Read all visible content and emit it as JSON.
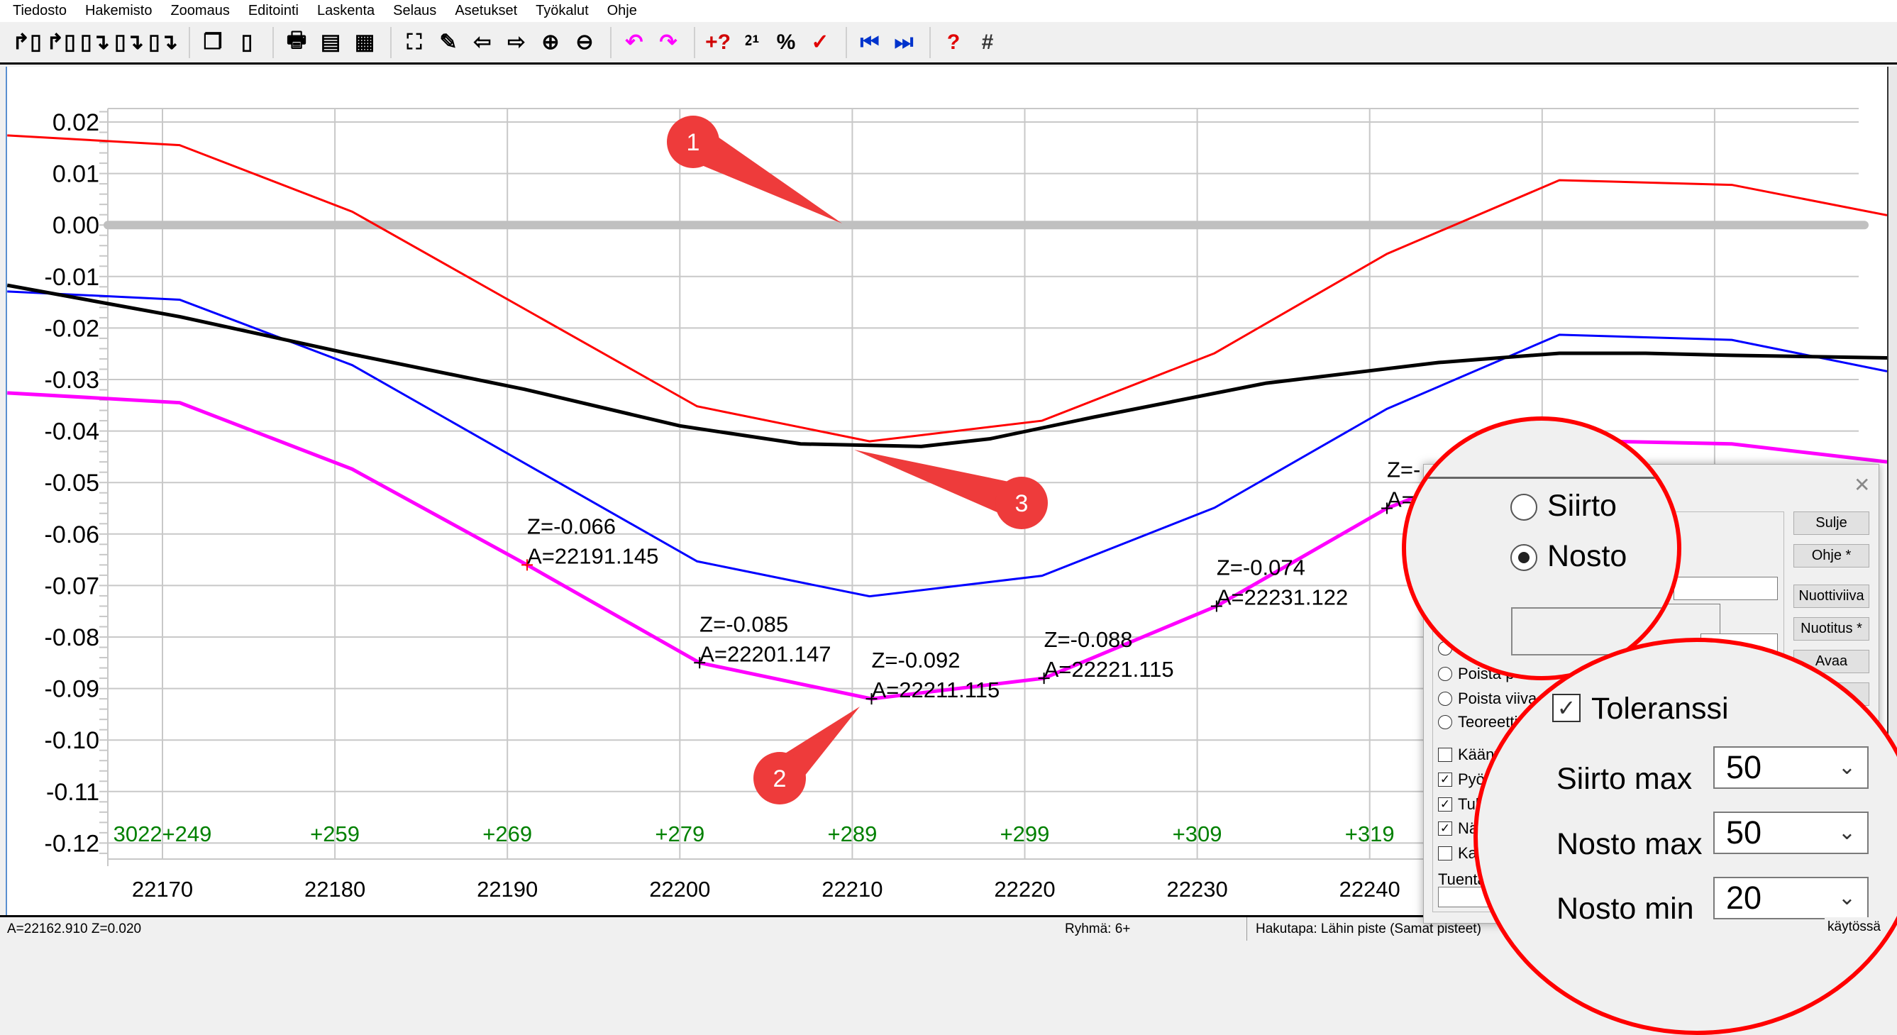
{
  "menu": [
    "Tiedosto",
    "Hakemisto",
    "Zoomaus",
    "Editointi",
    "Laskenta",
    "Selaus",
    "Asetukset",
    "Työkalut",
    "Ohje"
  ],
  "toolbar": [
    {
      "name": "open-file-icon",
      "glyph": "↱▯",
      "color": "#000"
    },
    {
      "name": "open-file-2-icon",
      "glyph": "↱▯",
      "color": "#000"
    },
    {
      "name": "save-file-icon",
      "glyph": "▯↴",
      "color": "#000"
    },
    {
      "name": "save-as-icon",
      "glyph": "▯↴",
      "color": "#000"
    },
    {
      "name": "export-file-icon",
      "glyph": "▯↴",
      "color": "#000"
    },
    {
      "sep": true
    },
    {
      "name": "copy-icon",
      "glyph": "❐",
      "color": "#000"
    },
    {
      "name": "new-page-icon",
      "glyph": "▯",
      "color": "#000"
    },
    {
      "sep": true
    },
    {
      "name": "print-icon",
      "glyph": "🖶",
      "color": "#000"
    },
    {
      "name": "scale-150-icon",
      "glyph": "▤",
      "color": "#000"
    },
    {
      "name": "layout-icon",
      "glyph": "▦",
      "color": "#000"
    },
    {
      "sep": true
    },
    {
      "name": "zoom-all-icon",
      "glyph": "⛶",
      "color": "#000"
    },
    {
      "name": "pan-icon",
      "glyph": "✎",
      "color": "#000"
    },
    {
      "name": "arrow-left-icon",
      "glyph": "⇦",
      "color": "#000"
    },
    {
      "name": "arrow-right-icon",
      "glyph": "⇨",
      "color": "#000"
    },
    {
      "name": "zoom-in-icon",
      "glyph": "⊕",
      "color": "#000"
    },
    {
      "name": "zoom-out-icon",
      "glyph": "⊖",
      "color": "#000"
    },
    {
      "sep": true
    },
    {
      "name": "undo-icon",
      "glyph": "↶",
      "color": "#ff00ff"
    },
    {
      "name": "redo-icon",
      "glyph": "↷",
      "color": "#ff00ff"
    },
    {
      "sep": true
    },
    {
      "name": "point-query-icon",
      "glyph": "+?",
      "color": "#d00000"
    },
    {
      "name": "point-numbering-icon",
      "glyph": "⁲¹",
      "color": "#000"
    },
    {
      "name": "xyz-icon",
      "glyph": "%",
      "color": "#000"
    },
    {
      "name": "check-xy-icon",
      "glyph": "✓",
      "color": "#e00000"
    },
    {
      "sep": true
    },
    {
      "name": "previous-icon",
      "glyph": "⏮",
      "color": "#0033cc"
    },
    {
      "name": "next-icon",
      "glyph": "⏭",
      "color": "#0033cc"
    },
    {
      "sep": true
    },
    {
      "name": "help-icon",
      "glyph": "?",
      "color": "#e00000"
    },
    {
      "name": "grid-icon",
      "glyph": "#",
      "color": "#333"
    }
  ],
  "chart_data": {
    "type": "line",
    "x_ticks": [
      22170,
      22180,
      22190,
      22200,
      22210,
      22220,
      22230,
      22240
    ],
    "x_tick_labels": [
      "22170",
      "22180",
      "22190",
      "22200",
      "22210",
      "22220",
      "22230",
      "22240"
    ],
    "y_ticks": [
      0.02,
      0.01,
      0.0,
      -0.01,
      -0.02,
      -0.03,
      -0.04,
      -0.05,
      -0.06,
      -0.07,
      -0.08,
      -0.09,
      -0.1,
      -0.11,
      -0.12
    ],
    "y_tick_labels": [
      "0.02",
      "0.01",
      "0.00",
      "-0.01",
      "-0.02",
      "-0.03",
      "-0.04",
      "-0.05",
      "-0.06",
      "-0.07",
      "-0.08",
      "-0.09",
      "-0.10",
      "-0.11",
      "-0.12"
    ],
    "ylim": [
      -0.12,
      0.02
    ],
    "grid": true,
    "reference_line": {
      "y": 0.0,
      "color": "#c0c0c0"
    },
    "series": [
      {
        "color": "#ff0000",
        "points": [
          [
            22161,
            0.0174
          ],
          [
            22171,
            0.0155
          ],
          [
            22181,
            0.0026
          ],
          [
            22201,
            -0.0352
          ],
          [
            22211,
            -0.042
          ],
          [
            22221,
            -0.038
          ],
          [
            22231,
            -0.0249
          ],
          [
            22241,
            -0.0056
          ],
          [
            22251,
            0.0087
          ],
          [
            22261,
            0.0078
          ],
          [
            22270,
            0.0019
          ]
        ]
      },
      {
        "color": "#0000ff",
        "points": [
          [
            22161,
            -0.0129
          ],
          [
            22171,
            -0.0145
          ],
          [
            22181,
            -0.0272
          ],
          [
            22201,
            -0.0653
          ],
          [
            22211,
            -0.0721
          ],
          [
            22221,
            -0.0681
          ],
          [
            22231,
            -0.0549
          ],
          [
            22241,
            -0.0357
          ],
          [
            22251,
            -0.0213
          ],
          [
            22261,
            -0.0223
          ],
          [
            22270,
            -0.0284
          ]
        ]
      },
      {
        "color": "#000000",
        "points": [
          [
            22161,
            -0.0117
          ],
          [
            22171,
            -0.0178
          ],
          [
            22181,
            -0.0251
          ],
          [
            22191,
            -0.0319
          ],
          [
            22200,
            -0.039
          ],
          [
            22207,
            -0.0425
          ],
          [
            22214,
            -0.043
          ],
          [
            22218,
            -0.0415
          ],
          [
            22224,
            -0.0373
          ],
          [
            22234,
            -0.0307
          ],
          [
            22244,
            -0.0267
          ],
          [
            22251,
            -0.0249
          ],
          [
            22256,
            -0.0249
          ],
          [
            22261,
            -0.0253
          ],
          [
            22270,
            -0.0258
          ]
        ]
      },
      {
        "color": "#ff00ff",
        "points": [
          [
            22161,
            -0.0326
          ],
          [
            22171,
            -0.0345
          ],
          [
            22181,
            -0.0474
          ],
          [
            22191.145,
            -0.066
          ],
          [
            22201.147,
            -0.085
          ],
          [
            22211.115,
            -0.092
          ],
          [
            22221.115,
            -0.088
          ],
          [
            22231.122,
            -0.074
          ],
          [
            22241,
            -0.055
          ],
          [
            22251,
            -0.0418
          ],
          [
            22261,
            -0.0425
          ],
          [
            22270,
            -0.046
          ]
        ]
      }
    ],
    "point_labels": [
      {
        "x": 22191.145,
        "y": -0.066,
        "z": "Z=-0.066",
        "a": "A=22191.145",
        "marker_color": "#ff0000"
      },
      {
        "x": 22201.147,
        "y": -0.085,
        "z": "Z=-0.085",
        "a": "A=22201.147",
        "marker_color": "#000000"
      },
      {
        "x": 22211.115,
        "y": -0.092,
        "z": "Z=-0.092",
        "a": "A=22211.115",
        "marker_color": "#000000"
      },
      {
        "x": 22221.115,
        "y": -0.088,
        "z": "Z=-0.088",
        "a": "A=22221.115",
        "marker_color": "#000000"
      },
      {
        "x": 22231.122,
        "y": -0.074,
        "z": "Z=-0.074",
        "a": "A=22231.122",
        "marker_color": "#000000"
      },
      {
        "x": 22241,
        "y": -0.055,
        "z": "Z=-",
        "a": "A=",
        "marker_color": "#000000"
      }
    ],
    "station_labels": [
      {
        "x": 22170,
        "label": "3022+249"
      },
      {
        "x": 22180,
        "label": "+259"
      },
      {
        "x": 22190,
        "label": "+269"
      },
      {
        "x": 22200,
        "label": "+279"
      },
      {
        "x": 22210,
        "label": "+289"
      },
      {
        "x": 22220,
        "label": "+299"
      },
      {
        "x": 22230,
        "label": "+309"
      },
      {
        "x": 22240,
        "label": "+319"
      }
    ],
    "station_label_color": "#008000",
    "callouts": [
      "1",
      "2",
      "3"
    ],
    "callout_color": "#ee3b3b"
  },
  "dialog": {
    "buttons": [
      "Sulje",
      "Ohje *",
      "Nuottiviiva",
      "Nuotitus *",
      "Avaa",
      ""
    ],
    "radios": [
      "",
      "Poista p",
      "Poista viiva (",
      "Teoreetti"
    ],
    "checkboxes": [
      {
        "label": "Käänt",
        "checked": false
      },
      {
        "label": "Pyöri",
        "checked": true
      },
      {
        "label": "Tuke",
        "checked": true
      },
      {
        "label": "Näyt",
        "checked": true
      },
      {
        "label": "Kaikki",
        "checked": false
      }
    ],
    "support_label": "Tuentasuun"
  },
  "magnifier1": {
    "radios": [
      {
        "label": "Siirto",
        "selected": false
      },
      {
        "label": "Nosto",
        "selected": true
      }
    ]
  },
  "magnifier2": {
    "tolerance_label": "Toleranssi",
    "tolerance_checked": true,
    "fields": [
      {
        "label": "Siirto max",
        "value": "50"
      },
      {
        "label": "Nosto max",
        "value": "50"
      },
      {
        "label": "Nosto min",
        "value": "20"
      }
    ]
  },
  "status": {
    "coords": "A=22162.910  Z=0.020",
    "group": "Ryhmä: 6+",
    "search": "Hakutapa: Lähin piste (Samat pisteet)",
    "right": "käytössä"
  }
}
